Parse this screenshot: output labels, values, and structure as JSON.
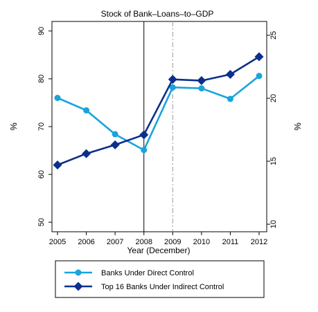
{
  "chart_data": {
    "type": "line",
    "title": "Stock of Bank–Loans–to–GDP",
    "xlabel": "Year (December)",
    "ylabel_left": "%",
    "ylabel_right": "%",
    "x": [
      "2005",
      "2006",
      "2007",
      "2008",
      "2009",
      "2010",
      "2011",
      "2012"
    ],
    "ylim_left": [
      48,
      92
    ],
    "yticks_left": [
      50,
      60,
      70,
      80,
      90
    ],
    "ylim_right": [
      9.4,
      26.1
    ],
    "yticks_right": [
      10,
      15,
      20,
      25
    ],
    "grid": false,
    "legend_position": "bottom",
    "reference_lines": [
      {
        "x": "2008",
        "style": "solid",
        "color": "#000000"
      },
      {
        "x": "2009",
        "style": "dashdot",
        "color": "#999999"
      }
    ],
    "series": [
      {
        "name": "Banks Under Direct Control",
        "axis": "left",
        "color": "#1aa3dd",
        "marker": "circle",
        "values": [
          76.0,
          73.4,
          68.4,
          65.1,
          78.2,
          78.0,
          75.8,
          80.6
        ]
      },
      {
        "name": "Top 16 Banks Under Indirect Control",
        "axis": "right",
        "color": "#0b2f8c",
        "marker": "diamond",
        "values": [
          14.7,
          15.6,
          16.3,
          17.1,
          21.5,
          21.4,
          21.9,
          23.3
        ]
      }
    ]
  }
}
